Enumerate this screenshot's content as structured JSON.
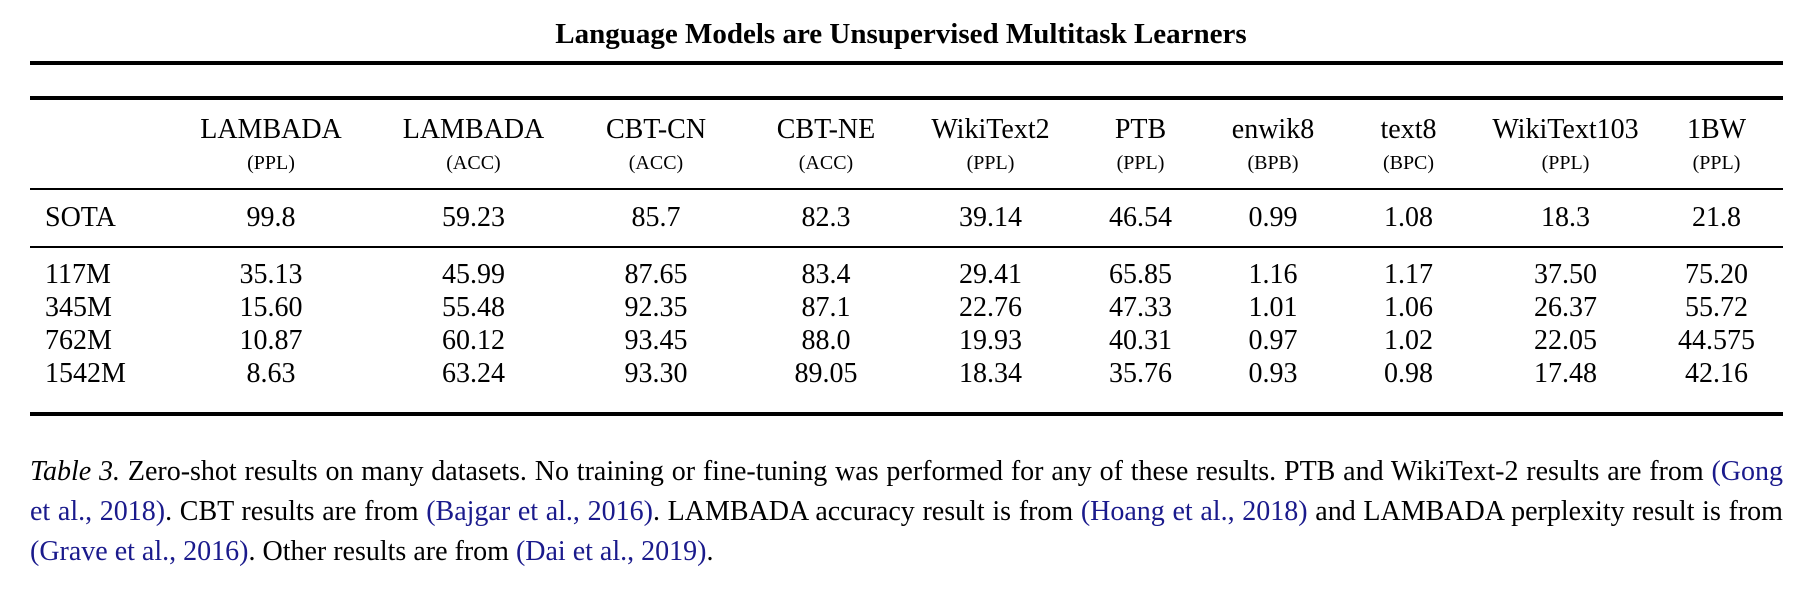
{
  "page_title": "Language Models are Unsupervised Multitask Learners",
  "table": {
    "columns": [
      {
        "name": "",
        "unit": ""
      },
      {
        "name": "LAMBADA",
        "unit": "(PPL)"
      },
      {
        "name": "LAMBADA",
        "unit": "(ACC)"
      },
      {
        "name": "CBT-CN",
        "unit": "(ACC)"
      },
      {
        "name": "CBT-NE",
        "unit": "(ACC)"
      },
      {
        "name": "WikiText2",
        "unit": "(PPL)"
      },
      {
        "name": "PTB",
        "unit": "(PPL)"
      },
      {
        "name": "enwik8",
        "unit": "(BPB)"
      },
      {
        "name": "text8",
        "unit": "(BPC)"
      },
      {
        "name": "WikiText103",
        "unit": "(PPL)"
      },
      {
        "name": "1BW",
        "unit": "(PPL)"
      }
    ],
    "sota_row": {
      "label": "SOTA",
      "values": [
        "99.8",
        "59.23",
        "85.7",
        "82.3",
        "39.14",
        "46.54",
        "0.99",
        "1.08",
        "18.3",
        "21.8"
      ],
      "bold": [
        0,
        0,
        0,
        0,
        0,
        0,
        0,
        0,
        0,
        1
      ]
    },
    "model_rows": [
      {
        "label": "117M",
        "values": [
          "35.13",
          "45.99",
          "87.65",
          "83.4",
          "29.41",
          "65.85",
          "1.16",
          "1.17",
          "37.50",
          "75.20"
        ],
        "bold": [
          1,
          0,
          1,
          1,
          1,
          0,
          0,
          0,
          0,
          0
        ]
      },
      {
        "label": "345M",
        "values": [
          "15.60",
          "55.48",
          "92.35",
          "87.1",
          "22.76",
          "47.33",
          "1.01",
          "1.06",
          "26.37",
          "55.72"
        ],
        "bold": [
          1,
          0,
          1,
          1,
          1,
          0,
          0,
          1,
          0,
          0
        ]
      },
      {
        "label": "762M",
        "values": [
          "10.87",
          "60.12",
          "93.45",
          "88.0",
          "19.93",
          "40.31",
          "0.97",
          "1.02",
          "22.05",
          "44.575"
        ],
        "bold": [
          1,
          1,
          1,
          1,
          1,
          1,
          1,
          1,
          0,
          0
        ]
      },
      {
        "label": "1542M",
        "values": [
          "8.63",
          "63.24",
          "93.30",
          "89.05",
          "18.34",
          "35.76",
          "0.93",
          "0.98",
          "17.48",
          "42.16"
        ],
        "bold": [
          1,
          1,
          1,
          1,
          1,
          1,
          1,
          1,
          1,
          0
        ]
      }
    ]
  },
  "caption": {
    "segments": [
      {
        "text": "Table 3.",
        "style": "italic"
      },
      {
        "text": " Zero-shot results on many datasets. No training or fine-tuning was performed for any of these results. PTB and WikiText-2 results are from ",
        "style": "normal"
      },
      {
        "text": "(Gong et al., 2018)",
        "style": "cite"
      },
      {
        "text": ". CBT results are from ",
        "style": "normal"
      },
      {
        "text": "(Bajgar et al., 2016)",
        "style": "cite"
      },
      {
        "text": ". LAMBADA accuracy result is from ",
        "style": "normal"
      },
      {
        "text": "(Hoang et al., 2018)",
        "style": "cite"
      },
      {
        "text": " and LAMBADA perplexity result is from ",
        "style": "normal"
      },
      {
        "text": "(Grave et al., 2016)",
        "style": "cite"
      },
      {
        "text": ". Other results are from ",
        "style": "normal"
      },
      {
        "text": "(Dai et al., 2019)",
        "style": "cite"
      },
      {
        "text": ".",
        "style": "normal"
      }
    ]
  },
  "colors": {
    "citation": "#1a1a8c",
    "text": "#000000",
    "background": "#ffffff"
  }
}
